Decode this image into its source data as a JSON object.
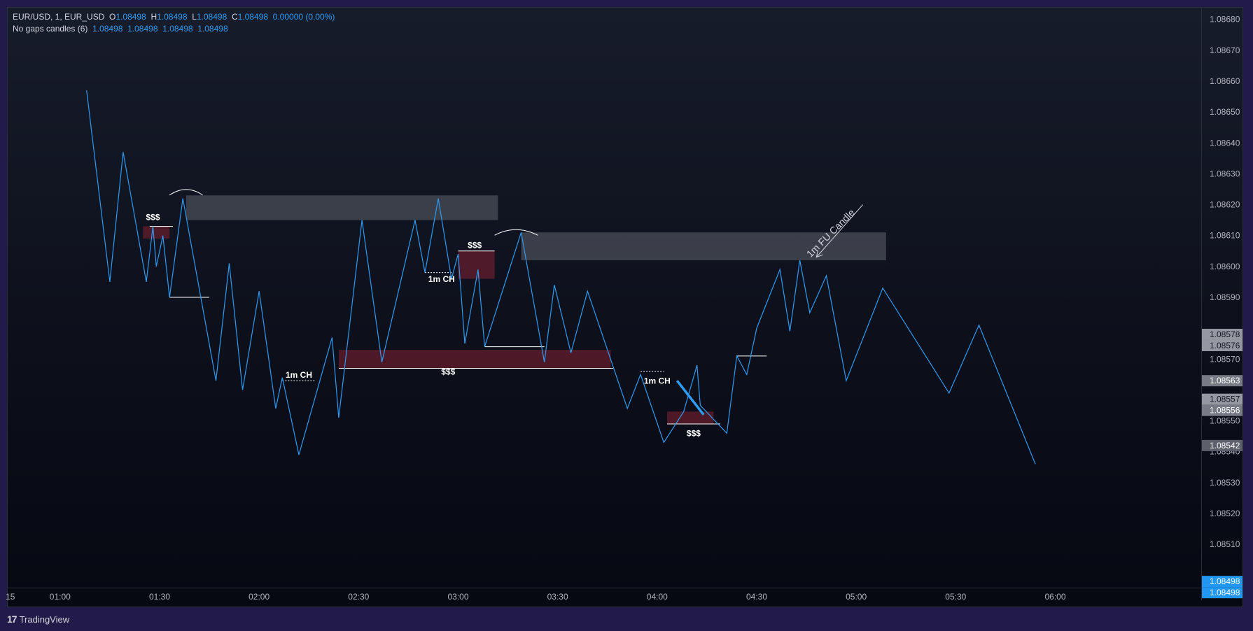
{
  "legend": {
    "symbol": "EUR/USD, 1, EUR_USD",
    "o_label": "O",
    "o": "1.08498",
    "h_label": "H",
    "h": "1.08498",
    "l_label": "L",
    "l": "1.08498",
    "c_label": "C",
    "c": "1.08498",
    "change": "0.00000 (0.00%)",
    "indicator_name": "No gaps candles (6)",
    "indicator_values": [
      "1.08498",
      "1.08498",
      "1.08498",
      "1.08498"
    ]
  },
  "footer": {
    "logo_icon": "17",
    "logo_text": "TradingView"
  },
  "colors": {
    "line": "#2e9bf5",
    "supply_zone": "#6b1e2e",
    "gray_zone": "#4a4d58",
    "axis_text": "#b2b5be"
  },
  "chart_data": {
    "type": "line",
    "x_unit": "time (hh:mm)",
    "ylim": [
      1.08496,
      1.08684
    ],
    "xlim": [
      "00:44",
      "06:44"
    ],
    "x_ticks": [
      {
        "t": "00:45",
        "label": "15"
      },
      {
        "t": "01:00",
        "label": "01:00"
      },
      {
        "t": "01:30",
        "label": "01:30"
      },
      {
        "t": "02:00",
        "label": "02:00"
      },
      {
        "t": "02:30",
        "label": "02:30"
      },
      {
        "t": "03:00",
        "label": "03:00"
      },
      {
        "t": "03:30",
        "label": "03:30"
      },
      {
        "t": "04:00",
        "label": "04:00"
      },
      {
        "t": "04:30",
        "label": "04:30"
      },
      {
        "t": "05:00",
        "label": "05:00"
      },
      {
        "t": "05:30",
        "label": "05:30"
      },
      {
        "t": "06:00",
        "label": "06:00"
      }
    ],
    "y_ticks": [
      "1.08680",
      "1.08670",
      "1.08660",
      "1.08650",
      "1.08640",
      "1.08630",
      "1.08620",
      "1.08610",
      "1.08600",
      "1.08590",
      "1.08570",
      "1.08550",
      "1.08540",
      "1.08530",
      "1.08520",
      "1.08510"
    ],
    "price_labels": [
      {
        "value": "1.08578",
        "style": "light"
      },
      {
        "value": "1.08576",
        "style": "light"
      },
      {
        "value": "1.08563",
        "style": "mid"
      },
      {
        "value": "1.08557",
        "style": "light"
      },
      {
        "value": "1.08556",
        "style": "mid"
      },
      {
        "value": "1.08542",
        "style": "dark"
      },
      {
        "value": "1.08498",
        "style": "blue"
      },
      {
        "value": "1.08498",
        "style": "blue"
      }
    ],
    "series": [
      {
        "points": [
          [
            "01:08",
            1.08657
          ],
          [
            "01:15",
            1.08595
          ],
          [
            "01:19",
            1.08637
          ],
          [
            "01:26",
            1.08595
          ],
          [
            "01:28",
            1.08613
          ],
          [
            "01:29",
            1.086
          ],
          [
            "01:31",
            1.0861
          ],
          [
            "01:33",
            1.0859
          ],
          [
            "01:37",
            1.08622
          ],
          [
            "01:47",
            1.08563
          ],
          [
            "01:51",
            1.08601
          ],
          [
            "01:55",
            1.0856
          ],
          [
            "02:00",
            1.08592
          ],
          [
            "02:05",
            1.08554
          ],
          [
            "02:07",
            1.08564
          ],
          [
            "02:12",
            1.08539
          ],
          [
            "02:22",
            1.08577
          ],
          [
            "02:24",
            1.08551
          ],
          [
            "02:31",
            1.08615
          ],
          [
            "02:37",
            1.08569
          ],
          [
            "02:47",
            1.08615
          ],
          [
            "02:50",
            1.08598
          ],
          [
            "02:54",
            1.08622
          ],
          [
            "02:58",
            1.08596
          ],
          [
            "03:00",
            1.08604
          ],
          [
            "03:02",
            1.08575
          ],
          [
            "03:06",
            1.08599
          ],
          [
            "03:08",
            1.08574
          ],
          [
            "03:19",
            1.08611
          ],
          [
            "03:26",
            1.08569
          ],
          [
            "03:29",
            1.08594
          ],
          [
            "03:34",
            1.08572
          ],
          [
            "03:39",
            1.08592
          ],
          [
            "03:51",
            1.08554
          ],
          [
            "03:55",
            1.08565
          ],
          [
            "04:02",
            1.08543
          ],
          [
            "04:08",
            1.08553
          ],
          [
            "04:12",
            1.08568
          ],
          [
            "04:13",
            1.08555
          ],
          [
            "04:21",
            1.08546
          ],
          [
            "04:24",
            1.08571
          ],
          [
            "04:27",
            1.08565
          ],
          [
            "04:30",
            1.0858
          ],
          [
            "04:37",
            1.08599
          ],
          [
            "04:40",
            1.08579
          ],
          [
            "04:43",
            1.08602
          ],
          [
            "04:46",
            1.08585
          ],
          [
            "04:51",
            1.08597
          ],
          [
            "04:57",
            1.08563
          ],
          [
            "05:08",
            1.08593
          ],
          [
            "05:28",
            1.08559
          ],
          [
            "05:37",
            1.08581
          ],
          [
            "05:54",
            1.08536
          ]
        ]
      }
    ],
    "zones": [
      {
        "kind": "gray",
        "t0": "01:38",
        "t1": "03:12",
        "p0": 1.08615,
        "p1": 1.08623
      },
      {
        "kind": "gray",
        "t0": "03:19",
        "t1": "05:09",
        "p0": 1.08602,
        "p1": 1.08611
      },
      {
        "kind": "supply",
        "t0": "01:25",
        "t1": "01:33",
        "p0": 1.08609,
        "p1": 1.08613
      },
      {
        "kind": "supply",
        "t0": "03:00",
        "t1": "03:11",
        "p0": 1.08596,
        "p1": 1.08605
      },
      {
        "kind": "supply",
        "t0": "02:24",
        "t1": "03:46",
        "p0": 1.08567,
        "p1": 1.08573
      },
      {
        "kind": "supply",
        "t0": "04:03",
        "t1": "04:17",
        "p0": 1.08549,
        "p1": 1.08553
      }
    ],
    "annotations": [
      {
        "text": "$$$",
        "t": "01:28",
        "p": 1.08615
      },
      {
        "text": "1m CH",
        "t": "02:12",
        "p": 1.08564
      },
      {
        "text": "$$$",
        "t": "02:57",
        "p": 1.08565
      },
      {
        "text": "1m CH",
        "t": "02:55",
        "p": 1.08595
      },
      {
        "text": "$$$",
        "t": "03:05",
        "p": 1.08606
      },
      {
        "text": "1m CH",
        "t": "04:00",
        "p": 1.08562
      },
      {
        "text": "$$$",
        "t": "04:11",
        "p": 1.08545
      },
      {
        "text": "1m FU Candle",
        "t": "04:53",
        "p": 1.0861,
        "rotate": -45
      }
    ],
    "level_lines": [
      {
        "t0": "01:27",
        "t1": "01:34",
        "p": 1.08613,
        "style": "solid"
      },
      {
        "t0": "01:33",
        "t1": "01:45",
        "p": 1.0859,
        "style": "solid"
      },
      {
        "t0": "02:24",
        "t1": "03:47",
        "p": 1.08567,
        "style": "solid"
      },
      {
        "t0": "03:08",
        "t1": "03:26",
        "p": 1.08574,
        "style": "solid"
      },
      {
        "t0": "03:00",
        "t1": "03:11",
        "p": 1.08605,
        "style": "solid"
      },
      {
        "t0": "04:03",
        "t1": "04:19",
        "p": 1.08549,
        "style": "solid"
      },
      {
        "t0": "04:24",
        "t1": "04:33",
        "p": 1.08571,
        "style": "solid"
      },
      {
        "t0": "02:07",
        "t1": "02:17",
        "p": 1.08563,
        "style": "dotted"
      },
      {
        "t0": "02:50",
        "t1": "02:58",
        "p": 1.08598,
        "style": "dotted"
      },
      {
        "t0": "03:55",
        "t1": "04:02",
        "p": 1.08566,
        "style": "dotted"
      }
    ],
    "thick_segment": {
      "t0": "04:06",
      "p0": 1.08563,
      "t1": "04:14",
      "p1": 1.08552
    },
    "arcs": [
      {
        "t0": "01:33",
        "t1": "01:43",
        "p": 1.08624
      },
      {
        "t0": "03:11",
        "t1": "03:24",
        "p": 1.08611
      }
    ],
    "arrow": {
      "t0": "05:02",
      "p0": 1.0862,
      "t1": "04:48",
      "p1": 1.08603
    }
  }
}
